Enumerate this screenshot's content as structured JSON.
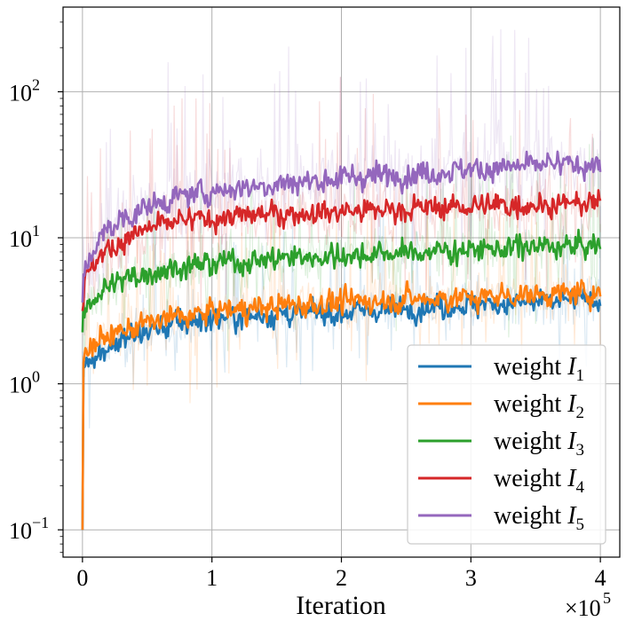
{
  "chart_data": {
    "type": "line",
    "title": "",
    "xlabel": "Iteration",
    "ylabel": "",
    "x_scale_label": "×10",
    "x_scale_exponent": "5",
    "x_scale_factor": 100000,
    "xlim": [
      -15000,
      415000
    ],
    "ylim": [
      0.065,
      380
    ],
    "yscale": "log",
    "grid": true,
    "legend_position": "lower-right",
    "x_ticks": [
      {
        "value": 0,
        "label": "0"
      },
      {
        "value": 100000,
        "label": "1"
      },
      {
        "value": 200000,
        "label": "2"
      },
      {
        "value": 300000,
        "label": "3"
      },
      {
        "value": 400000,
        "label": "4"
      }
    ],
    "y_ticks": [
      {
        "value": 0.1,
        "base": "10",
        "exp": "−1"
      },
      {
        "value": 1,
        "base": "10",
        "exp": "0"
      },
      {
        "value": 10,
        "base": "10",
        "exp": "1"
      },
      {
        "value": 100,
        "base": "10",
        "exp": "2"
      }
    ],
    "series": [
      {
        "name": "weight I1",
        "label_prefix": "weight ",
        "label_var": "I",
        "label_sub": "1",
        "color": "#1f77b4",
        "x": [
          0,
          2000,
          10000,
          25000,
          50000,
          75000,
          100000,
          150000,
          200000,
          250000,
          300000,
          350000,
          400000
        ],
        "values": [
          1.3,
          1.4,
          1.6,
          1.9,
          2.3,
          2.6,
          2.8,
          3.0,
          3.1,
          3.3,
          3.5,
          3.6,
          3.8
        ],
        "band_low_ratio": 0.45,
        "band_high_ratio": 2.2
      },
      {
        "name": "weight I2",
        "label_prefix": "weight ",
        "label_var": "I",
        "label_sub": "2",
        "color": "#ff7f0e",
        "x": [
          0,
          2000,
          10000,
          25000,
          50000,
          75000,
          100000,
          150000,
          200000,
          250000,
          300000,
          350000,
          400000
        ],
        "values": [
          1.5,
          1.7,
          1.9,
          2.2,
          2.6,
          2.9,
          3.1,
          3.4,
          3.6,
          3.8,
          3.9,
          4.1,
          4.2
        ],
        "band_low_ratio": 0.4,
        "band_high_ratio": 2.4
      },
      {
        "name": "weight I3",
        "label_prefix": "weight ",
        "label_var": "I",
        "label_sub": "3",
        "color": "#2ca02c",
        "x": [
          0,
          2000,
          10000,
          25000,
          50000,
          75000,
          100000,
          150000,
          200000,
          250000,
          300000,
          350000,
          400000
        ],
        "values": [
          2.5,
          3.2,
          4.0,
          4.9,
          5.8,
          6.3,
          6.7,
          7.2,
          7.6,
          7.9,
          8.3,
          8.6,
          8.8
        ],
        "band_low_ratio": 0.4,
        "band_high_ratio": 2.5
      },
      {
        "name": "weight I4",
        "label_prefix": "weight ",
        "label_var": "I",
        "label_sub": "4",
        "color": "#d62728",
        "x": [
          0,
          2000,
          10000,
          25000,
          50000,
          75000,
          100000,
          150000,
          200000,
          250000,
          300000,
          350000,
          400000
        ],
        "values": [
          3.5,
          5.0,
          7.0,
          9.0,
          11.5,
          12.8,
          13.6,
          14.6,
          15.2,
          15.8,
          16.4,
          16.9,
          17.2
        ],
        "band_low_ratio": 0.35,
        "band_high_ratio": 3.0
      },
      {
        "name": "weight I5",
        "label_prefix": "weight ",
        "label_var": "I",
        "label_sub": "5",
        "color": "#9467bd",
        "x": [
          0,
          2000,
          10000,
          25000,
          50000,
          75000,
          100000,
          150000,
          200000,
          250000,
          300000,
          350000,
          400000
        ],
        "values": [
          4.0,
          6.0,
          9.0,
          12.5,
          16.5,
          19.0,
          21.0,
          23.5,
          25.5,
          27.5,
          29.5,
          31.0,
          32.0
        ],
        "band_low_ratio": 0.35,
        "band_high_ratio": 3.6
      }
    ]
  }
}
